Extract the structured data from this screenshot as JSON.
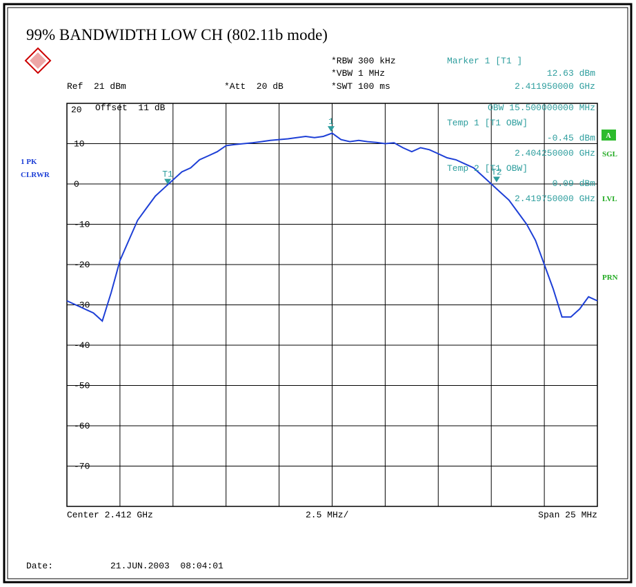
{
  "chart_data": {
    "type": "line",
    "title": "99% BANDWIDTH LOW CH (802.11b mode)",
    "color": "#1d3fd6",
    "ylim": [
      -80,
      20
    ],
    "yticks": [
      20,
      10,
      0,
      -10,
      -20,
      -30,
      -40,
      -50,
      -60,
      -70
    ],
    "xlim": [
      2.3995,
      2.4245
    ],
    "grid": true,
    "values": [
      -29,
      -30,
      -31,
      -32,
      -34,
      -27,
      -19,
      -14,
      -9,
      -6,
      -3,
      -1,
      1,
      3,
      4,
      6,
      7,
      8,
      9.5,
      9.8,
      10,
      10.2,
      10.5,
      10.8,
      11,
      11.2,
      11.5,
      11.8,
      11.5,
      11.8,
      12.6,
      11,
      10.5,
      10.8,
      10.5,
      10.3,
      10,
      10.2,
      9,
      8,
      9,
      8.5,
      7.5,
      6.5,
      6,
      5,
      4,
      2,
      0,
      -2,
      -4,
      -7,
      -10,
      -14,
      -20,
      -26,
      -33,
      -33,
      -31,
      -28,
      -29
    ],
    "markers": [
      {
        "label": "1",
        "freq": 2.41195,
        "level": 12.63
      },
      {
        "label": "T1",
        "freq": 2.40425,
        "level": -0.45
      },
      {
        "label": "T2",
        "freq": 2.41975,
        "level": 0.09
      }
    ],
    "annotations": {
      "rbw": "*RBW 300 kHz",
      "vbw": "*VBW 1 MHz",
      "swt": "*SWT 100 ms",
      "ref": "Ref  21 dBm",
      "att": "*Att  20 dB",
      "offset": "Offset  11 dB",
      "marker_title": "Marker 1 [T1 ]",
      "marker_level": "12.63 dBm",
      "marker_freq": "2.411950000 GHz",
      "obw": "OBW 15.500000000 MHz",
      "temp1_title": "Temp 1 [T1 OBW]",
      "temp1_level": "-0.45 dBm",
      "temp1_freq": "2.404250000 GHz",
      "temp2_title": "Temp 2 [T1 OBW]",
      "temp2_level": "0.09 dBm",
      "temp2_freq": "2.419750000 GHz",
      "trace_mode": "1 PK",
      "trace_clear": "CLRWR",
      "flag_a": "A",
      "flag_sgl": "SGL",
      "flag_lvl": "LVL",
      "flag_prn": "PRN",
      "center": "Center 2.412 GHz",
      "per_div": "2.5 MHz/",
      "span": "Span 25 MHz",
      "date_label": "Date:",
      "date": "21.JUN.2003  08:04:01"
    }
  }
}
